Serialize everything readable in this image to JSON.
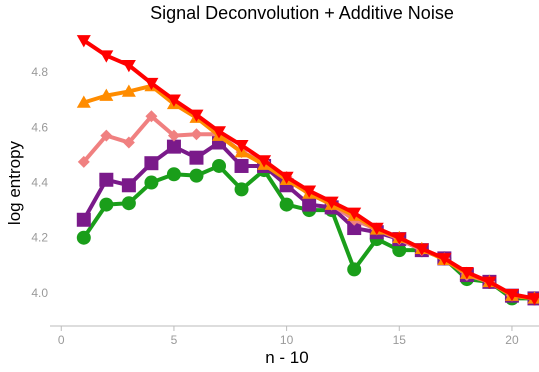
{
  "chart_data": {
    "type": "line",
    "title": "Signal Deconvolution + Additive Noise",
    "xlabel": "n - 10",
    "ylabel": "log entropy",
    "xlim": [
      -0.5,
      21.2
    ],
    "ylim": [
      3.88,
      4.96
    ],
    "xticks": [
      0,
      5,
      10,
      15,
      20
    ],
    "yticks": [
      4.0,
      4.2,
      4.4,
      4.6,
      4.8
    ],
    "ytick_labels": [
      "4.0",
      "4.2",
      "4.4",
      "4.6",
      "4.8"
    ],
    "grid": false,
    "legend": false,
    "x": [
      1,
      2,
      3,
      4,
      5,
      6,
      7,
      8,
      9,
      10,
      11,
      12,
      13,
      14,
      15,
      16,
      17,
      18,
      19,
      20,
      21
    ],
    "series": [
      {
        "color": "#1a9e1a",
        "marker": "circle",
        "values": [
          4.2,
          4.32,
          4.325,
          4.4,
          4.43,
          4.425,
          4.46,
          4.375,
          4.445,
          4.32,
          4.3,
          4.3,
          4.085,
          4.195,
          4.155,
          4.155,
          4.125,
          4.05,
          4.04,
          3.98,
          3.98
        ]
      },
      {
        "color": "#7a1a8a",
        "marker": "square",
        "values": [
          4.265,
          4.41,
          4.39,
          4.47,
          4.53,
          4.49,
          4.545,
          4.46,
          4.46,
          4.39,
          4.32,
          4.31,
          4.235,
          4.22,
          4.195,
          4.155,
          4.125,
          4.065,
          4.04,
          3.99,
          3.98
        ]
      },
      {
        "color": "#f08080",
        "marker": "diamond",
        "values": [
          4.475,
          4.57,
          4.545,
          4.64,
          4.57,
          4.575,
          4.575,
          4.51,
          4.475,
          4.42,
          4.365,
          4.32,
          4.265,
          4.23,
          4.195,
          4.155,
          4.125,
          4.065,
          4.04,
          3.99,
          3.98
        ]
      },
      {
        "color": "#ff8c00",
        "marker": "triangle-up",
        "values": [
          4.69,
          4.715,
          4.73,
          4.75,
          4.685,
          4.635,
          4.57,
          4.51,
          4.465,
          4.41,
          4.36,
          4.32,
          4.28,
          4.23,
          4.2,
          4.16,
          4.12,
          4.07,
          4.04,
          3.99,
          3.98
        ]
      },
      {
        "color": "#ff0000",
        "marker": "triangle-down",
        "values": [
          4.915,
          4.86,
          4.825,
          4.76,
          4.7,
          4.645,
          4.585,
          4.535,
          4.48,
          4.42,
          4.37,
          4.33,
          4.29,
          4.235,
          4.2,
          4.16,
          4.125,
          4.075,
          4.04,
          3.995,
          3.98
        ]
      }
    ]
  }
}
